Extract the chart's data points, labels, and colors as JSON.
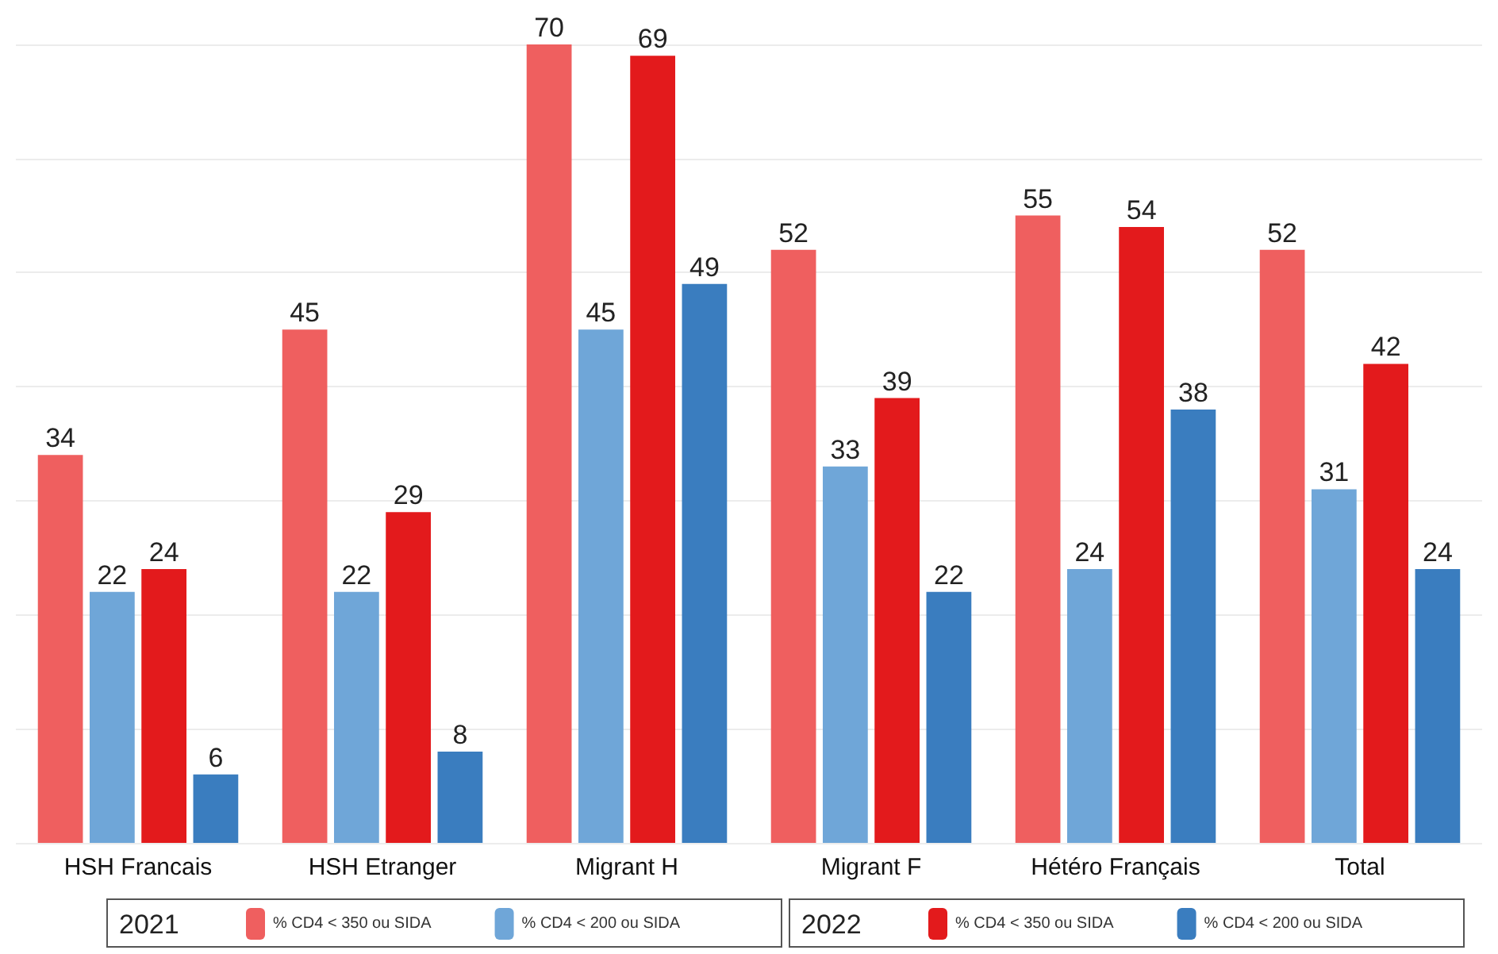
{
  "chart_data": {
    "type": "bar",
    "categories": [
      "HSH Francais",
      "HSH Etranger",
      "Migrant H",
      "Migrant F",
      "Hétéro Français",
      "Total"
    ],
    "series": [
      {
        "name": "% CD4 < 350 ou SIDA",
        "color": "#ef5f5f",
        "values": [
          34,
          45,
          70,
          52,
          55,
          52
        ]
      },
      {
        "name": "% CD4 < 200 ou SIDA",
        "color": "#6fa6d8",
        "values": [
          22,
          22,
          45,
          33,
          24,
          31
        ]
      },
      {
        "name": "% CD4 < 350 ou SIDA",
        "color": "#e31a1c",
        "values": [
          24,
          29,
          69,
          39,
          54,
          42
        ]
      },
      {
        "name": "% CD4 < 200 ou SIDA",
        "color": "#3a7dbf",
        "values": [
          6,
          8,
          49,
          22,
          38,
          24
        ]
      }
    ],
    "annotations": [
      "2021",
      "2022"
    ],
    "ylim": [
      0,
      70
    ],
    "yticks": [
      0,
      10,
      20,
      30,
      40,
      50,
      60,
      70
    ],
    "tick_labels": "x",
    "grid": "y",
    "legend": "bottom",
    "data_labels": true
  }
}
